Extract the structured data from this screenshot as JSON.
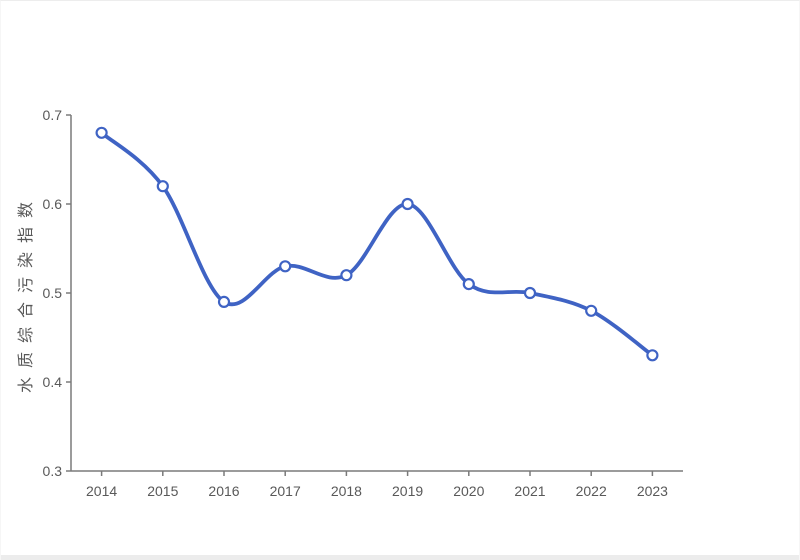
{
  "page": {
    "background": "#ffffff"
  },
  "chart_data": {
    "type": "line",
    "title": "",
    "categories": [
      "2014",
      "2015",
      "2016",
      "2017",
      "2018",
      "2019",
      "2020",
      "2021",
      "2022",
      "2023"
    ],
    "series": [
      {
        "name": "水质综合污染指数",
        "values": [
          0.68,
          0.62,
          0.49,
          0.53,
          0.52,
          0.6,
          0.51,
          0.5,
          0.48,
          0.43
        ]
      }
    ],
    "xlabel": "",
    "ylabel": "水质综合污染指数",
    "ylim": [
      0.3,
      0.7
    ],
    "yticks": [
      0.3,
      0.4,
      0.5,
      0.6,
      0.7
    ],
    "ytick_labels": [
      "0.3",
      "0.4",
      "0.5",
      "0.6",
      "0.7"
    ],
    "grid": false,
    "legend": "none",
    "smooth": true,
    "marker": "open-circle",
    "colors": {
      "line": "#3F63C4",
      "marker_fill": "#ffffff",
      "axis": "#7a7a7a",
      "tick_text": "#595959"
    }
  }
}
